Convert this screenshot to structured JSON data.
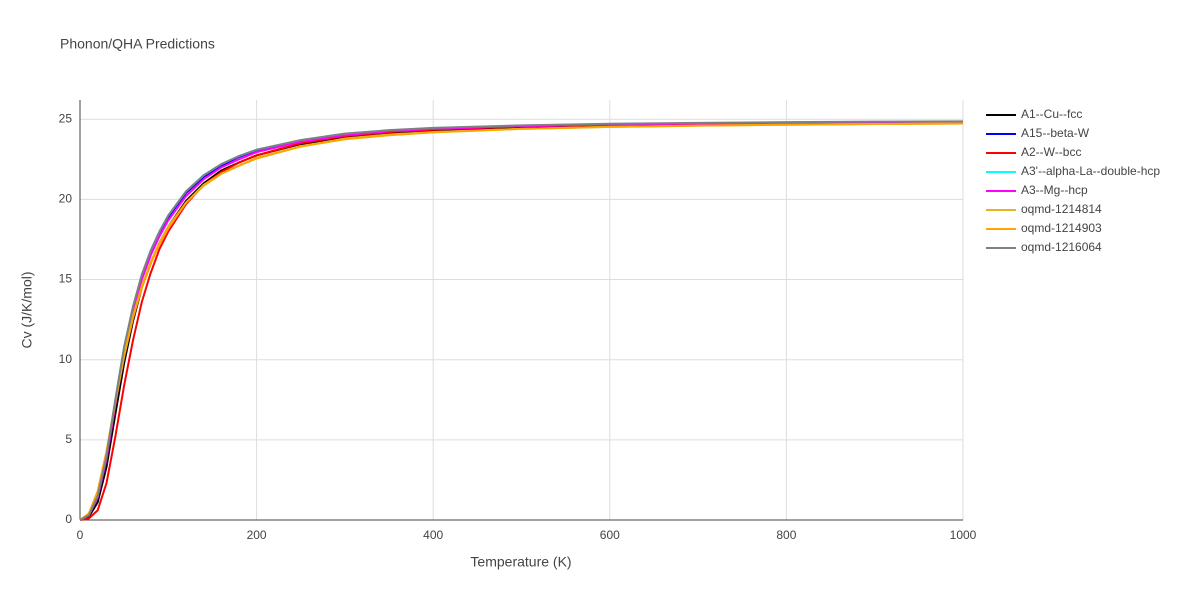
{
  "chart_data": {
    "type": "line",
    "title": "Phonon/QHA Predictions",
    "x_label": "Temperature (K)",
    "y_label": "Cv (J/K/mol)",
    "x": [
      0,
      10,
      20,
      30,
      40,
      50,
      60,
      70,
      80,
      90,
      100,
      120,
      140,
      160,
      180,
      200,
      250,
      300,
      350,
      400,
      500,
      600,
      700,
      800,
      900,
      1000
    ],
    "series": [
      {
        "name": "A1--Cu--fcc",
        "color": "#000000",
        "values": [
          0,
          0.2,
          1.1,
          3.3,
          6.6,
          9.8,
          12.4,
          14.5,
          16.0,
          17.3,
          18.3,
          19.9,
          21.0,
          21.8,
          22.3,
          22.75,
          23.45,
          23.9,
          24.15,
          24.3,
          24.5,
          24.6,
          24.67,
          24.72,
          24.76,
          24.78
        ]
      },
      {
        "name": "A15--beta-W",
        "color": "#0000ff",
        "values": [
          0,
          0.3,
          1.4,
          3.9,
          7.4,
          10.7,
          13.2,
          15.2,
          16.7,
          17.9,
          18.9,
          20.4,
          21.4,
          22.1,
          22.65,
          23.05,
          23.65,
          24.05,
          24.28,
          24.42,
          24.58,
          24.68,
          24.74,
          24.78,
          24.81,
          24.83
        ]
      },
      {
        "name": "A2--W--bcc",
        "color": "#ff0000",
        "values": [
          0,
          0.1,
          0.6,
          2.3,
          5.2,
          8.4,
          11.2,
          13.6,
          15.4,
          16.9,
          18.0,
          19.7,
          20.9,
          21.7,
          22.3,
          22.75,
          23.5,
          23.95,
          24.2,
          24.35,
          24.55,
          24.65,
          24.72,
          24.77,
          24.8,
          24.82
        ]
      },
      {
        "name": "A3'--alpha-La--double-hcp",
        "color": "#00ffff",
        "values": [
          0,
          0.3,
          1.5,
          4.0,
          7.5,
          10.8,
          13.3,
          15.3,
          16.8,
          18.0,
          19.0,
          20.5,
          21.5,
          22.2,
          22.7,
          23.1,
          23.7,
          24.1,
          24.3,
          24.45,
          24.6,
          24.7,
          24.75,
          24.8,
          24.82,
          24.85
        ]
      },
      {
        "name": "A3--Mg--hcp",
        "color": "#ff00ff",
        "values": [
          0,
          0.3,
          1.4,
          3.8,
          7.2,
          10.4,
          12.9,
          15.0,
          16.5,
          17.7,
          18.7,
          20.2,
          21.25,
          22.0,
          22.5,
          22.95,
          23.6,
          24.0,
          24.25,
          24.4,
          24.57,
          24.67,
          24.73,
          24.77,
          24.8,
          24.82
        ]
      },
      {
        "name": "oqmd-1214814",
        "color": "#e8b520",
        "values": [
          0,
          0.4,
          1.8,
          4.3,
          7.4,
          10.3,
          12.7,
          14.6,
          16.1,
          17.3,
          18.3,
          19.8,
          20.9,
          21.6,
          22.1,
          22.6,
          23.3,
          23.8,
          24.05,
          24.2,
          24.4,
          24.52,
          24.6,
          24.66,
          24.7,
          24.73
        ]
      },
      {
        "name": "oqmd-1214903",
        "color": "#ffa500",
        "values": [
          0,
          0.4,
          1.7,
          4.2,
          7.3,
          10.2,
          12.6,
          14.5,
          16.0,
          17.2,
          18.2,
          19.8,
          20.85,
          21.6,
          22.1,
          22.55,
          23.3,
          23.75,
          24.0,
          24.18,
          24.4,
          24.52,
          24.6,
          24.66,
          24.7,
          24.73
        ]
      },
      {
        "name": "oqmd-1216064",
        "color": "#808080",
        "values": [
          0,
          0.3,
          1.5,
          4.0,
          7.5,
          10.8,
          13.3,
          15.3,
          16.8,
          18.0,
          19.0,
          20.5,
          21.5,
          22.2,
          22.7,
          23.1,
          23.7,
          24.1,
          24.32,
          24.46,
          24.62,
          24.72,
          24.77,
          24.82,
          24.85,
          24.87
        ]
      }
    ],
    "xlim": [
      0,
      1000
    ],
    "xticks": [
      0,
      200,
      400,
      600,
      800,
      1000
    ],
    "ylim": [
      0,
      26.2
    ],
    "yticks": [
      0,
      5,
      10,
      15,
      20,
      25
    ],
    "grid": true
  }
}
